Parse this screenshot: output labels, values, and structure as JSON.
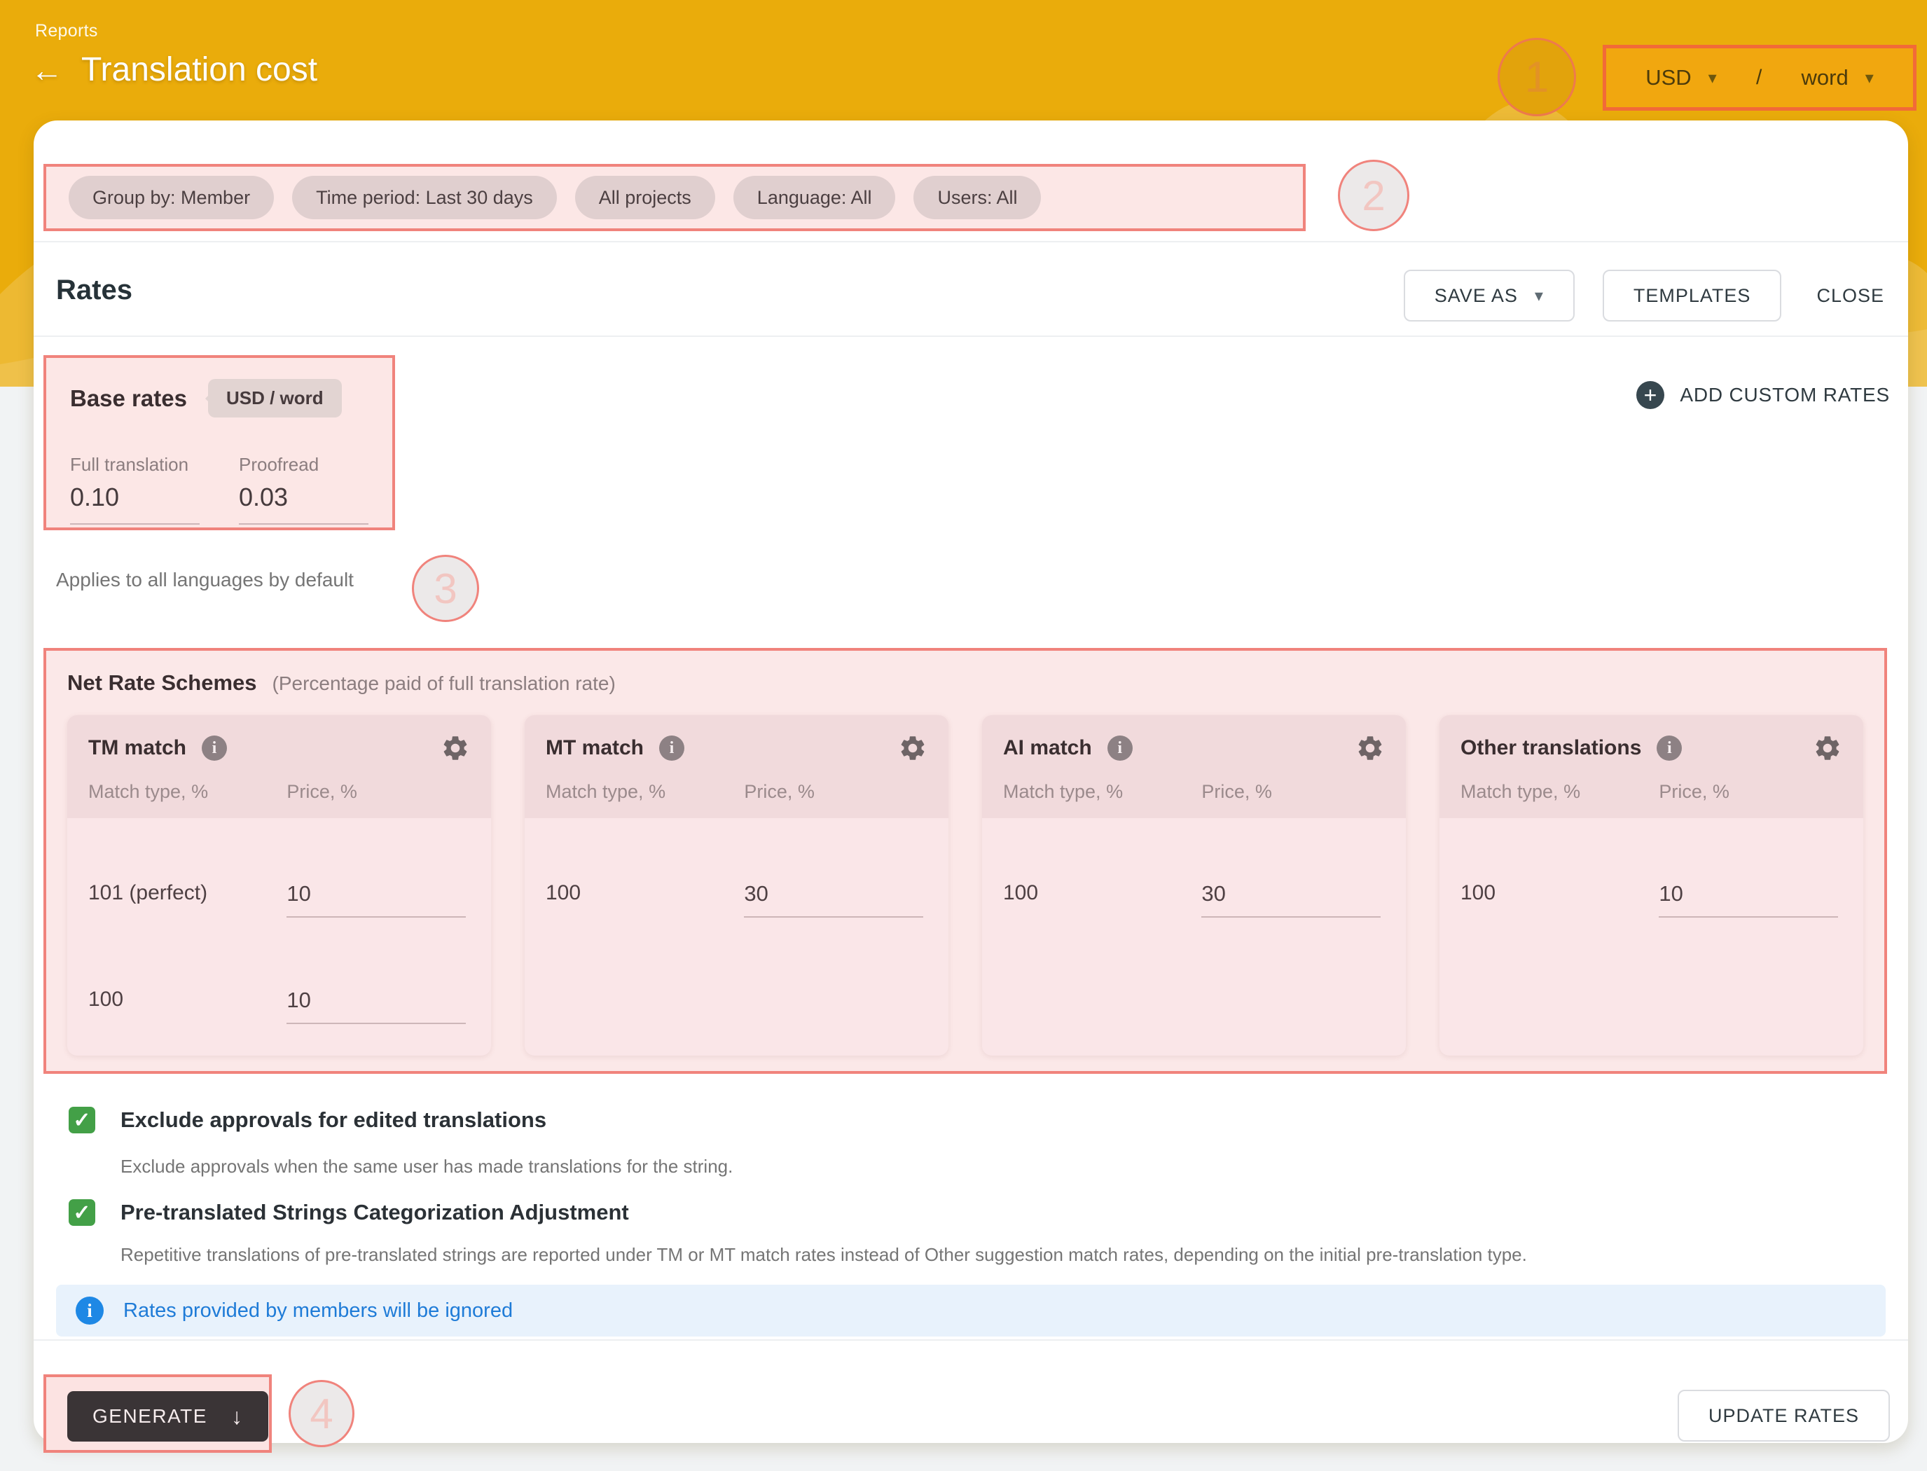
{
  "colors": {
    "header_yellow": "#EAAC0B",
    "annotation_red": "#F0837C",
    "highlight_pink": "#FCE7E6",
    "checkbox_green": "#43A047",
    "banner_blue": "#1E88E5",
    "generate_dark": "#3A3436"
  },
  "header": {
    "breadcrumb": "Reports",
    "back_arrow": "←",
    "title": "Translation cost",
    "currency": "USD",
    "separator": "/",
    "unit": "word",
    "caret": "▾"
  },
  "annotations": {
    "n1": "1",
    "n2": "2",
    "n3": "3",
    "n4": "4"
  },
  "filters": {
    "chips": [
      "Group by: Member",
      "Time period: Last 30 days",
      "All projects",
      "Language: All",
      "Users: All"
    ]
  },
  "rates_header": {
    "title": "Rates",
    "save_as": "SAVE AS",
    "save_as_caret": "▾",
    "templates": "TEMPLATES",
    "close": "CLOSE"
  },
  "base_rates": {
    "title": "Base rates",
    "unit_badge": "USD / word",
    "fields": [
      {
        "label": "Full translation",
        "value": "0.10"
      },
      {
        "label": "Proofread",
        "value": "0.03"
      }
    ],
    "add_custom_rates": "ADD CUSTOM RATES",
    "plus": "+",
    "note": "Applies to all languages by default"
  },
  "net_rate_schemes": {
    "title": "Net Rate Schemes",
    "subtitle": "(Percentage paid of full translation rate)",
    "col_match": "Match type, %",
    "col_price": "Price, %",
    "info_glyph": "i",
    "cards": [
      {
        "title": "TM match",
        "rows": [
          {
            "match": "101 (perfect)",
            "price": "10"
          },
          {
            "match": "100",
            "price": "10"
          }
        ]
      },
      {
        "title": "MT match",
        "rows": [
          {
            "match": "100",
            "price": "30"
          }
        ]
      },
      {
        "title": "AI match",
        "rows": [
          {
            "match": "100",
            "price": "30"
          }
        ]
      },
      {
        "title": "Other translations",
        "rows": [
          {
            "match": "100",
            "price": "10"
          }
        ]
      }
    ]
  },
  "options": [
    {
      "checked": true,
      "check_glyph": "✓",
      "label": "Exclude approvals for edited translations",
      "description": "Exclude approvals when the same user has made translations for the string."
    },
    {
      "checked": true,
      "check_glyph": "✓",
      "label": "Pre-translated Strings Categorization Adjustment",
      "description": "Repetitive translations of pre-translated strings are reported under TM or MT match rates instead of Other suggestion match rates, depending on the initial pre-translation type."
    }
  ],
  "banner": {
    "icon_glyph": "i",
    "text": "Rates provided by members will be ignored"
  },
  "footer": {
    "generate": "GENERATE",
    "generate_arrow": "↓",
    "update_rates": "UPDATE RATES"
  }
}
